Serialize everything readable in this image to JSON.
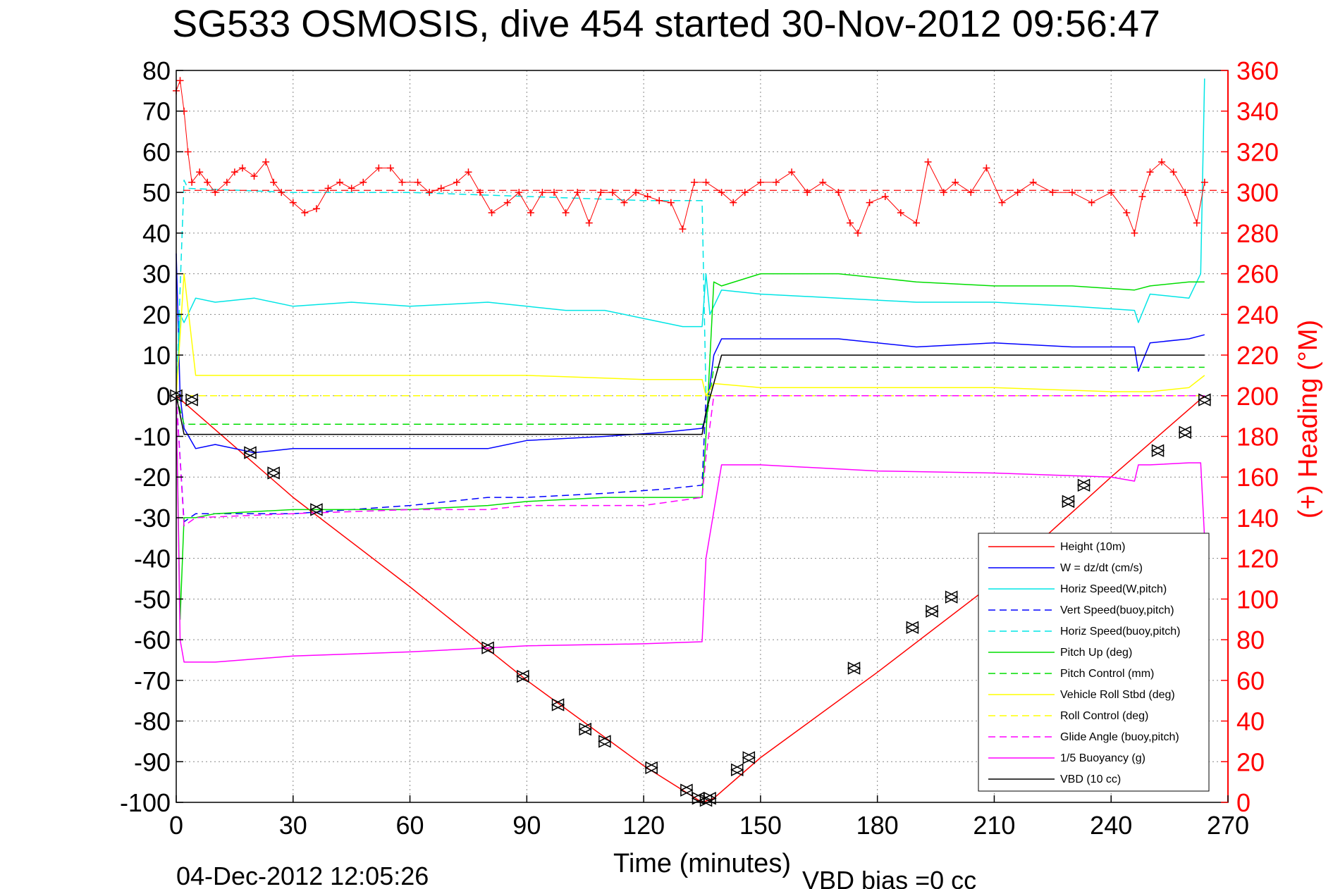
{
  "chart_data": {
    "type": "line",
    "title": "SG533 OSMOSIS, dive 454 started 30-Nov-2012 09:56:47",
    "xlabel": "Time (minutes)",
    "ylabel_right": "(+) Heading (°M)",
    "xlim": [
      0,
      270
    ],
    "ylim_left": [
      -100,
      80
    ],
    "ylim_right": [
      0,
      360
    ],
    "grid": true,
    "legend_position": "bottom-right",
    "x_ticks": [
      "0",
      "30",
      "60",
      "90",
      "120",
      "150",
      "180",
      "210",
      "240",
      "270"
    ],
    "y_ticks_left": [
      "80",
      "70",
      "60",
      "50",
      "40",
      "30",
      "20",
      "10",
      "0",
      "-10",
      "-20",
      "-30",
      "-40",
      "-50",
      "-60",
      "-70",
      "-80",
      "-90",
      "-100"
    ],
    "y_ticks_right": [
      "360",
      "340",
      "320",
      "300",
      "280",
      "260",
      "240",
      "220",
      "200",
      "180",
      "160",
      "140",
      "120",
      "100",
      "80",
      "60",
      "40",
      "20",
      "0"
    ],
    "footer_date": "04-Dec-2012 12:05:26",
    "footer_bias": "VBD bias =0 cc",
    "series": [
      {
        "name": "Height (10m)",
        "color": "#ff0000",
        "dash": "solid",
        "x": [
          0,
          30,
          60,
          90,
          120,
          135,
          138,
          150,
          180,
          210,
          240,
          264
        ],
        "y": [
          0,
          -25,
          -47,
          -70,
          -91,
          -100,
          -99,
          -89,
          -68,
          -46,
          -20,
          0
        ]
      },
      {
        "name": "W = dz/dt (cm/s)",
        "color": "#0000ff",
        "dash": "solid",
        "x": [
          0,
          1,
          2,
          5,
          10,
          20,
          30,
          60,
          80,
          90,
          110,
          125,
          135,
          136,
          138,
          140,
          150,
          170,
          190,
          210,
          230,
          246,
          247,
          250,
          260,
          264
        ],
        "y": [
          35,
          0,
          -8,
          -13,
          -12,
          -14,
          -13,
          -13,
          -13,
          -11,
          -10,
          -9,
          -8,
          -5,
          10,
          14,
          14,
          14,
          12,
          13,
          12,
          12,
          6,
          13,
          14,
          15
        ]
      },
      {
        "name": "Horiz Speed(W,pitch)",
        "color": "#00e5e5",
        "dash": "solid",
        "x": [
          0,
          1,
          2,
          5,
          10,
          20,
          30,
          45,
          60,
          80,
          90,
          100,
          110,
          120,
          130,
          135,
          136,
          137,
          140,
          150,
          170,
          190,
          210,
          230,
          246,
          247,
          250,
          260,
          263,
          264
        ],
        "y": [
          0,
          20,
          18,
          24,
          23,
          24,
          22,
          23,
          22,
          23,
          22,
          21,
          21,
          19,
          17,
          17,
          30,
          20,
          26,
          25,
          24,
          23,
          23,
          22,
          21,
          18,
          25,
          24,
          30,
          78
        ]
      },
      {
        "name": "Vert Speed(buoy,pitch)",
        "color": "#0000ff",
        "dash": "dashed",
        "x": [
          0,
          2,
          5,
          20,
          30,
          60,
          80,
          90,
          110,
          125,
          135,
          136
        ],
        "y": [
          0,
          -31,
          -29,
          -29,
          -29,
          -27,
          -25,
          -25,
          -24,
          -23,
          -22,
          0
        ]
      },
      {
        "name": "Horiz Speed(buoy,pitch)",
        "color": "#00e5e5",
        "dash": "dashed",
        "x": [
          0,
          2,
          3,
          30,
          60,
          90,
          120,
          135,
          136
        ],
        "y": [
          0,
          53,
          51,
          50,
          50,
          49,
          48,
          48,
          0
        ]
      },
      {
        "name": "Pitch Up (deg)",
        "color": "#00dd00",
        "dash": "solid",
        "x": [
          0,
          1,
          2,
          5,
          10,
          30,
          60,
          80,
          90,
          110,
          125,
          135,
          136,
          138,
          140,
          150,
          170,
          190,
          210,
          230,
          246,
          250,
          260,
          264
        ],
        "y": [
          0,
          -55,
          -30,
          -30,
          -29,
          -28,
          -28,
          -27,
          -26,
          -25,
          -25,
          -25,
          -10,
          28,
          27,
          30,
          30,
          28,
          27,
          27,
          26,
          27,
          28,
          28
        ]
      },
      {
        "name": "Pitch Control (mm)",
        "color": "#00dd00",
        "dash": "dashed",
        "x": [
          0,
          2,
          135,
          136,
          138,
          264
        ],
        "y": [
          0,
          -7,
          -7,
          -7,
          7,
          7
        ]
      },
      {
        "name": "Vehicle Roll Stbd (deg)",
        "color": "#ffff00",
        "dash": "solid",
        "x": [
          0,
          2,
          5,
          10,
          30,
          60,
          90,
          120,
          135,
          136,
          138,
          150,
          180,
          210,
          240,
          250,
          260,
          264
        ],
        "y": [
          0,
          30,
          5,
          5,
          5,
          5,
          5,
          4,
          4,
          0,
          3,
          2,
          2,
          2,
          1,
          1,
          2,
          5
        ]
      },
      {
        "name": "Roll Control (deg)",
        "color": "#ffff00",
        "dash": "dashed",
        "x": [
          0,
          2,
          135,
          136,
          264
        ],
        "y": [
          0,
          0,
          0,
          0,
          0
        ]
      },
      {
        "name": "Glide Angle (buoy,pitch)",
        "color": "#ff00ff",
        "dash": "dashed",
        "x": [
          0,
          2,
          5,
          30,
          60,
          80,
          90,
          120,
          135,
          136,
          138,
          264
        ],
        "y": [
          0,
          -32,
          -30,
          -29,
          -28,
          -28,
          -27,
          -27,
          -25,
          -15,
          0,
          0
        ]
      },
      {
        "name": "1/5 Buoyancy (g)",
        "color": "#ff00ff",
        "dash": "solid",
        "x": [
          0,
          1,
          2,
          10,
          30,
          60,
          80,
          90,
          120,
          135,
          136,
          140,
          150,
          180,
          210,
          240,
          246,
          247,
          250,
          260,
          263,
          264
        ],
        "y": [
          0,
          -60,
          -65.5,
          -65.5,
          -64,
          -63,
          -62,
          -61.5,
          -61,
          -60.5,
          -40,
          -17,
          -17,
          -18.5,
          -19,
          -20,
          -21,
          -17,
          -17,
          -16.5,
          -16.5,
          -35
        ]
      },
      {
        "name": "VBD (10 cc)",
        "color": "#000000",
        "dash": "solid",
        "x": [
          0,
          2,
          135,
          136,
          140,
          264
        ],
        "y": [
          0,
          -9.5,
          -9.5,
          -4,
          10,
          10
        ]
      }
    ],
    "heading_series": {
      "name": "Heading",
      "axis": "right",
      "color": "#ff0000",
      "marker": "+",
      "mean": 301,
      "x": [
        0,
        1,
        2,
        3,
        4,
        6,
        8,
        10,
        13,
        15,
        17,
        20,
        23,
        25,
        27,
        30,
        33,
        36,
        39,
        42,
        45,
        48,
        52,
        55,
        58,
        62,
        65,
        68,
        72,
        75,
        78,
        81,
        85,
        88,
        91,
        94,
        97,
        100,
        103,
        106,
        109,
        112,
        115,
        118,
        121,
        124,
        127,
        130,
        133,
        136,
        140,
        143,
        146,
        150,
        154,
        158,
        162,
        166,
        170,
        173,
        175,
        178,
        182,
        186,
        190,
        193,
        197,
        200,
        204,
        208,
        212,
        216,
        220,
        225,
        230,
        235,
        240,
        244,
        246,
        248,
        250,
        253,
        256,
        259,
        262,
        264
      ],
      "y": [
        350,
        355,
        340,
        320,
        305,
        310,
        305,
        300,
        305,
        310,
        312,
        308,
        315,
        305,
        300,
        295,
        290,
        292,
        302,
        305,
        302,
        305,
        312,
        312,
        305,
        305,
        300,
        302,
        305,
        310,
        300,
        290,
        295,
        300,
        290,
        300,
        300,
        290,
        300,
        285,
        300,
        300,
        295,
        300,
        298,
        296,
        295,
        282,
        305,
        305,
        300,
        295,
        300,
        305,
        305,
        310,
        300,
        305,
        300,
        285,
        280,
        295,
        298,
        290,
        285,
        315,
        300,
        305,
        300,
        312,
        295,
        300,
        305,
        300,
        300,
        295,
        300,
        290,
        280,
        298,
        310,
        315,
        310,
        300,
        285,
        305
      ]
    },
    "waypoint_markers": {
      "shape": "triangle",
      "x": [
        0,
        4,
        19,
        25,
        36,
        80,
        89,
        98,
        105,
        110,
        122,
        131,
        134,
        136,
        137,
        144,
        147,
        174,
        189,
        194,
        199,
        208,
        212,
        229,
        233,
        252,
        259,
        264
      ],
      "y": [
        0,
        -1,
        -14,
        -19,
        -28,
        -62,
        -69,
        -76,
        -82,
        -85,
        -91.5,
        -97,
        -99,
        -99.5,
        -99,
        -92,
        -89,
        -67,
        -57,
        -53,
        -49.5,
        -42,
        -39,
        -26,
        -22,
        -13.5,
        -9,
        -1
      ]
    }
  }
}
